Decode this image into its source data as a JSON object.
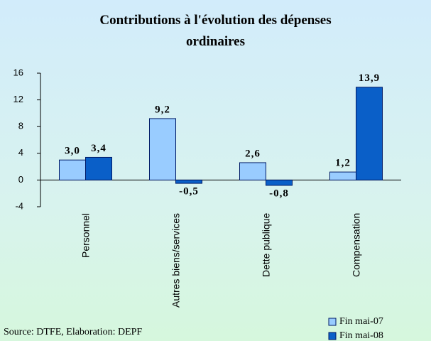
{
  "chart_data": {
    "type": "bar",
    "title": "Contributions à l'évolution des dépenses ordinaires",
    "categories": [
      "Personnel",
      "Autres biens/services",
      "Dette publique",
      "Compensation"
    ],
    "series": [
      {
        "name": "Fin mai-07",
        "color": "#99ccff",
        "values": [
          3.0,
          9.2,
          2.6,
          1.2
        ],
        "value_labels": [
          "3,0",
          "9,2",
          "2,6",
          "1,2"
        ]
      },
      {
        "name": "Fin mai-08",
        "color": "#0a5fc8",
        "values": [
          3.4,
          -0.5,
          -0.8,
          13.9
        ],
        "value_labels": [
          "3,4",
          "-0,5",
          "-0,8",
          "13,9"
        ]
      }
    ],
    "ylim": [
      -4,
      16
    ],
    "yticks": [
      -4,
      0,
      4,
      8,
      12,
      16
    ],
    "legend": "bottom-right",
    "source": "Source: DTFE, Elaboration: DEPF"
  }
}
